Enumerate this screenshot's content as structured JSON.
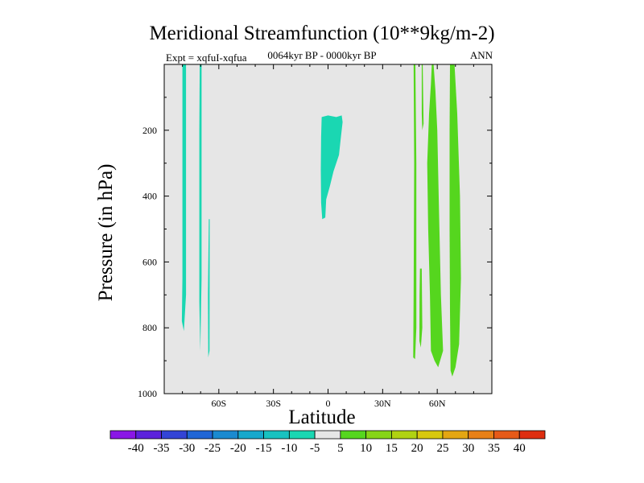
{
  "chart_data": {
    "type": "contour",
    "title": "Meridional Streamfunction (10**9kg/m-2)",
    "subtitle": "0064kyr BP - 0000kyr BP",
    "experiment": "Expt = xqfuI-xqfua",
    "season": "ANN",
    "xlabel": "Latitude",
    "ylabel": "Pressure (in hPa)",
    "xlim": [
      -90,
      90
    ],
    "ylim": [
      1000,
      0
    ],
    "x_ticks": [
      {
        "value": -60,
        "label": "60S"
      },
      {
        "value": -30,
        "label": "30S"
      },
      {
        "value": 0,
        "label": "0"
      },
      {
        "value": 30,
        "label": "30N"
      },
      {
        "value": 60,
        "label": "60N"
      }
    ],
    "y_ticks": [
      {
        "value": 200,
        "label": "200"
      },
      {
        "value": 400,
        "label": "400"
      },
      {
        "value": 600,
        "label": "600"
      },
      {
        "value": 800,
        "label": "800"
      },
      {
        "value": 1000,
        "label": "1000"
      }
    ],
    "background_color": "#e6e6e6",
    "regions": [
      {
        "name": "sh-polar-strip-a",
        "level": -10,
        "color": "#1ad7b2",
        "polygon": [
          [
            -80,
            0
          ],
          [
            -78,
            0
          ],
          [
            -78,
            700
          ],
          [
            -79.2,
            810
          ],
          [
            -80.3,
            780
          ],
          [
            -80,
            650
          ]
        ]
      },
      {
        "name": "sh-polar-strip-b",
        "level": -10,
        "color": "#1ad7b2",
        "polygon": [
          [
            -70.5,
            0
          ],
          [
            -69.5,
            0
          ],
          [
            -69.5,
            650
          ],
          [
            -70.2,
            870
          ],
          [
            -70.7,
            720
          ],
          [
            -70.7,
            200
          ]
        ]
      },
      {
        "name": "sh-polar-strip-c",
        "level": -10,
        "color": "#1ad7b2",
        "polygon": [
          [
            -65.5,
            470
          ],
          [
            -65,
            470
          ],
          [
            -65.1,
            870
          ],
          [
            -65.8,
            890
          ],
          [
            -66,
            700
          ]
        ]
      },
      {
        "name": "equatorial-cell",
        "level": -10,
        "color": "#1ad7b2",
        "polygon": [
          [
            -3.5,
            160
          ],
          [
            0,
            155
          ],
          [
            4.5,
            160
          ],
          [
            7.5,
            155
          ],
          [
            8,
            175
          ],
          [
            7,
            225
          ],
          [
            6,
            275
          ],
          [
            3,
            325
          ],
          [
            1,
            370
          ],
          [
            -1,
            410
          ],
          [
            -1.5,
            465
          ],
          [
            -3.2,
            470
          ],
          [
            -3.8,
            420
          ],
          [
            -4,
            320
          ],
          [
            -3.8,
            220
          ]
        ]
      },
      {
        "name": "nh-midlat-strip-a",
        "level": 5,
        "color": "#55d61e",
        "polygon": [
          [
            47,
            0
          ],
          [
            48,
            0
          ],
          [
            48.5,
            300
          ],
          [
            48.5,
            800
          ],
          [
            47.8,
            895
          ],
          [
            46.8,
            890
          ],
          [
            47,
            700
          ],
          [
            47.3,
            300
          ]
        ]
      },
      {
        "name": "nh-midlat-strip-b",
        "level": 5,
        "color": "#55d61e",
        "polygon": [
          [
            51.5,
            0
          ],
          [
            52,
            0
          ],
          [
            52.5,
            180
          ],
          [
            51.8,
            200
          ],
          [
            51.5,
            150
          ]
        ]
      },
      {
        "name": "nh-midlat-strip-c",
        "level": 5,
        "color": "#55d61e",
        "polygon": [
          [
            50.5,
            620
          ],
          [
            51.5,
            620
          ],
          [
            51.8,
            800
          ],
          [
            51,
            860
          ],
          [
            50.2,
            840
          ],
          [
            50.3,
            700
          ]
        ]
      },
      {
        "name": "nh-storm-track-cell",
        "level": 5,
        "color": "#55d61e",
        "polygon": [
          [
            57,
            0
          ],
          [
            58,
            0
          ],
          [
            59,
            80
          ],
          [
            60,
            200
          ],
          [
            61,
            450
          ],
          [
            62,
            700
          ],
          [
            63.2,
            870
          ],
          [
            60.5,
            920
          ],
          [
            58.5,
            900
          ],
          [
            56.5,
            870
          ],
          [
            56,
            700
          ],
          [
            55,
            500
          ],
          [
            54.5,
            300
          ],
          [
            55.5,
            150
          ],
          [
            56.5,
            60
          ]
        ]
      },
      {
        "name": "nh-polar-cell",
        "level": 5,
        "color": "#55d61e",
        "polygon": [
          [
            67,
            0
          ],
          [
            69.5,
            0
          ],
          [
            71,
            150
          ],
          [
            72.5,
            400
          ],
          [
            73,
            650
          ],
          [
            72,
            850
          ],
          [
            70,
            920
          ],
          [
            68.3,
            948
          ],
          [
            67.3,
            930
          ],
          [
            67,
            750
          ],
          [
            66.8,
            500
          ],
          [
            66.8,
            200
          ]
        ]
      }
    ],
    "colorbar": {
      "labels": [
        "-40",
        "-35",
        "-30",
        "-25",
        "-20",
        "-15",
        "-10",
        "-5",
        "5",
        "10",
        "15",
        "20",
        "25",
        "30",
        "35",
        "40"
      ],
      "colors": [
        "#8a16e6",
        "#5c22dc",
        "#3344d6",
        "#2066d6",
        "#1a8ad0",
        "#16a8cc",
        "#18c2c0",
        "#1ad7b2",
        "#e6e6e6",
        "#55d61e",
        "#86d416",
        "#b0d212",
        "#d8c80e",
        "#e4a612",
        "#e88016",
        "#e65a18",
        "#de2e10"
      ]
    }
  }
}
